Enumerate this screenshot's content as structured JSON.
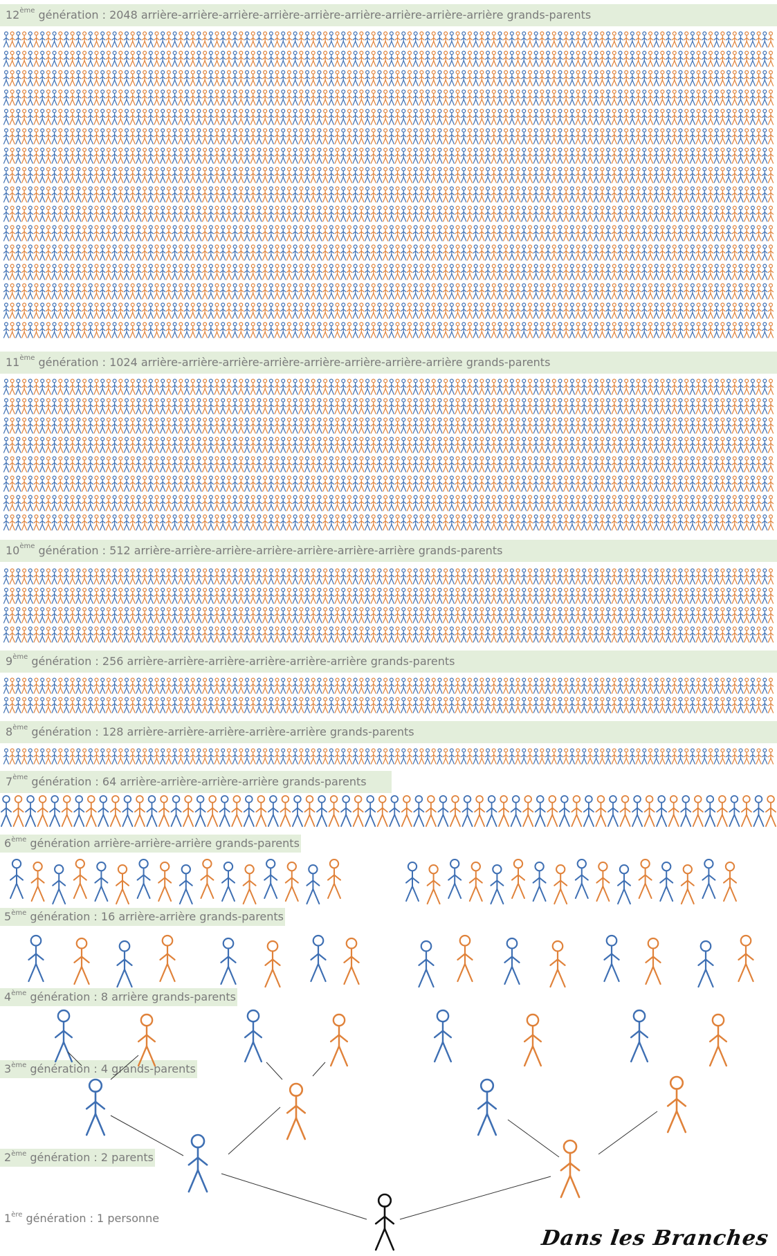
{
  "colors": {
    "blue": "#3e6fb3",
    "orange": "#e0823a",
    "black": "#111111",
    "band": "#e3eedb",
    "label": "#7a7a7a"
  },
  "generations": [
    {
      "num": "12",
      "sup": "ème",
      "text": " génération : 2048 arrière-arrière-arrière-arrière-arrière-arrière-arrière-arrière-arrière grands-parents",
      "count": 2048
    },
    {
      "num": "11",
      "sup": "ème",
      "text": " génération : 1024 arrière-arrière-arrière-arrière-arrière-arrière-arrière-arrière grands-parents",
      "count": 1024
    },
    {
      "num": "10",
      "sup": "ème",
      "text": " génération : 512 arrière-arrière-arrière-arrière-arrière-arrière-arrière grands-parents",
      "count": 512
    },
    {
      "num": "9",
      "sup": "ème",
      "text": " génération : 256 arrière-arrière-arrière-arrière-arrière-arrière grands-parents",
      "count": 256
    },
    {
      "num": "8",
      "sup": "ème",
      "text": " génération : 128 arrière-arrière-arrière-arrière-arrière grands-parents",
      "count": 128
    },
    {
      "num": "7",
      "sup": "ème",
      "text": " génération : 64 arrière-arrière-arrière-arrière grands-parents",
      "count": 64
    },
    {
      "num": "6",
      "sup": "ème",
      "text": " génération arrière-arrière-arrière grands-parents",
      "count": 32
    },
    {
      "num": "5",
      "sup": "ème",
      "text": " génération : 16 arrière-arrière grands-parents",
      "count": 16
    },
    {
      "num": "4",
      "sup": "ème",
      "text": " génération : 8 arrière grands-parents",
      "count": 8
    },
    {
      "num": "3",
      "sup": "ème",
      "text": " génération : 4 grands-parents",
      "count": 4
    },
    {
      "num": "2",
      "sup": "ème",
      "text": " génération : 2 parents",
      "count": 2
    },
    {
      "num": "1",
      "sup": "ère",
      "text": " génération : 1 personne",
      "count": 1
    }
  ],
  "signature": "Dans les Branches"
}
